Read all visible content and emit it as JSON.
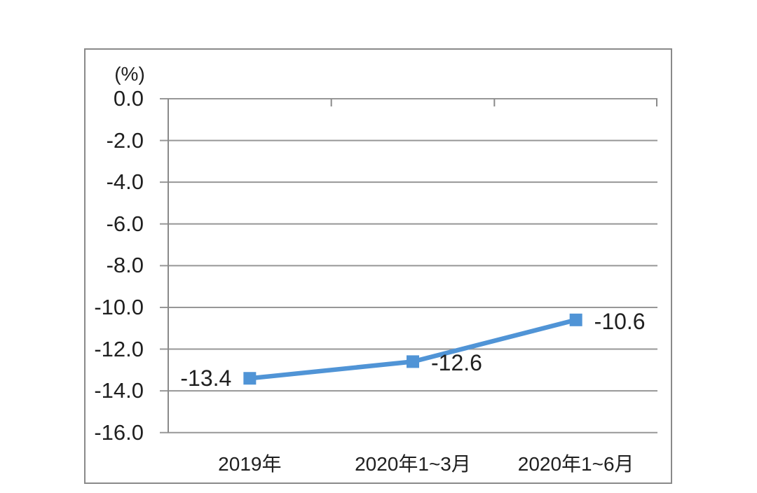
{
  "chart_data": {
    "type": "line",
    "title": "",
    "unit": "(%)",
    "categories": [
      "2019年",
      "2020年1~3月",
      "2020年1~6月"
    ],
    "series": [
      {
        "name": "",
        "values": [
          -13.4,
          -12.6,
          -10.6
        ]
      }
    ],
    "data_labels": [
      "-13.4",
      "-12.6",
      "-10.6"
    ],
    "ytick_labels": [
      "0.0",
      "-2.0",
      "-4.0",
      "-6.0",
      "-8.0",
      "-10.0",
      "-12.0",
      "-14.0",
      "-16.0"
    ],
    "ylim": [
      -16.0,
      0.0
    ],
    "ytick_step": 2.0,
    "grid": true,
    "legend_position": "none",
    "marker": "square",
    "colors": {
      "line": "#5094d6",
      "marker": "#5094d6",
      "grid": "#979797",
      "axis": "#8a8a8a",
      "border": "#8a8a8a",
      "text": "#1f1f1f",
      "background": "#ffffff"
    }
  }
}
